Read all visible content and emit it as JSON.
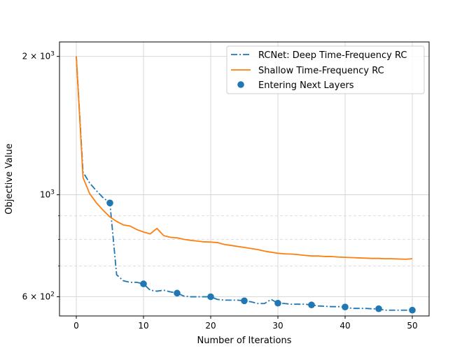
{
  "chart_data": {
    "type": "line",
    "title": "",
    "xlabel": "Number of Iterations",
    "ylabel": "Objective Value",
    "xlim": [
      -2.5,
      52.5
    ],
    "ylim": [
      545,
      2150
    ],
    "yscale": "log",
    "grid": true,
    "x_ticks": [
      0,
      10,
      20,
      30,
      40,
      50
    ],
    "x_tick_labels": [
      "0",
      "10",
      "20",
      "30",
      "40",
      "50"
    ],
    "y_major_ticks": [
      {
        "value": 600,
        "base": "6 × 10",
        "exp": "2"
      },
      {
        "value": 1000,
        "base": "10",
        "exp": "3"
      },
      {
        "value": 2000,
        "base": "2 × 10",
        "exp": "3"
      }
    ],
    "y_minor_ticks": [
      700,
      800,
      900
    ],
    "legend_position": "top-right",
    "series": [
      {
        "name": "RCNet: Deep Time-Frequency RC",
        "color": "#1f77b4",
        "style": "dashdot",
        "x": [
          0,
          1,
          2,
          3,
          4,
          5,
          6,
          7,
          8,
          9,
          10,
          11,
          12,
          13,
          14,
          15,
          16,
          17,
          18,
          19,
          20,
          21,
          22,
          23,
          24,
          25,
          26,
          27,
          28,
          29,
          30,
          31,
          32,
          33,
          34,
          35,
          36,
          37,
          38,
          39,
          40,
          41,
          42,
          43,
          44,
          45,
          46,
          47,
          48,
          49,
          50
        ],
        "y": [
          2000,
          1120,
          1060,
          1020,
          985,
          960,
          670,
          650,
          645,
          645,
          640,
          620,
          617,
          620,
          615,
          611,
          602,
          600,
          600,
          600,
          600,
          592,
          590,
          590,
          590,
          588,
          585,
          580,
          580,
          592,
          581,
          580,
          578,
          578,
          578,
          576,
          573,
          572,
          571,
          571,
          570,
          566,
          566,
          566,
          565,
          564,
          561,
          561,
          561,
          561,
          561
        ]
      },
      {
        "name": "Shallow Time-Frequency RC",
        "color": "#ff7f0e",
        "style": "solid",
        "x": [
          0,
          1,
          2,
          3,
          4,
          5,
          6,
          7,
          8,
          9,
          10,
          11,
          12,
          13,
          14,
          15,
          16,
          17,
          18,
          19,
          20,
          21,
          22,
          23,
          24,
          25,
          26,
          27,
          28,
          29,
          30,
          31,
          32,
          33,
          34,
          35,
          36,
          37,
          38,
          39,
          40,
          41,
          42,
          43,
          44,
          45,
          46,
          47,
          48,
          49,
          50
        ],
        "y": [
          2000,
          1090,
          1005,
          960,
          925,
          895,
          875,
          860,
          855,
          840,
          830,
          822,
          845,
          815,
          808,
          806,
          800,
          796,
          793,
          790,
          789,
          787,
          780,
          776,
          772,
          768,
          764,
          760,
          754,
          750,
          746,
          744,
          743,
          741,
          738,
          736,
          736,
          734,
          734,
          732,
          731,
          730,
          729,
          728,
          727,
          727,
          726,
          726,
          725,
          724,
          726
        ]
      },
      {
        "name": "Entering Next Layers",
        "color": "#1f77b4",
        "style": "markers",
        "x": [
          5,
          10,
          15,
          20,
          25,
          30,
          35,
          40,
          45,
          50
        ],
        "y": [
          960,
          640,
          611,
          600,
          588,
          581,
          576,
          570,
          565,
          561
        ]
      }
    ]
  }
}
